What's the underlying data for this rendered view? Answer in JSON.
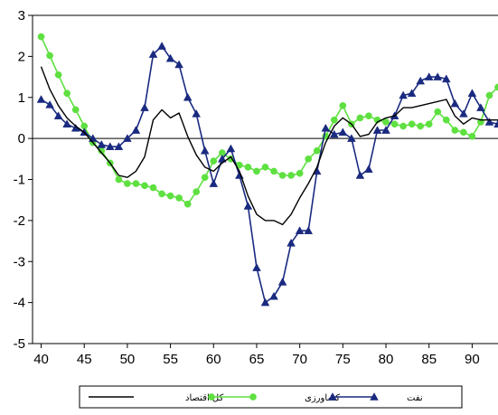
{
  "chart_data": {
    "type": "line",
    "xlabel": "",
    "ylabel": "",
    "xlim": [
      39,
      93
    ],
    "ylim": [
      -5,
      3
    ],
    "x_ticks": [
      40,
      45,
      50,
      55,
      60,
      65,
      70,
      75,
      80,
      85,
      90
    ],
    "y_ticks": [
      3,
      2,
      1,
      0,
      -1,
      -2,
      -3,
      -4,
      -5
    ],
    "zero_line": true,
    "grid": false,
    "legend_position": "bottom",
    "series": [
      {
        "name": "کل اقتصاد",
        "color": "#000000",
        "marker": "none",
        "x": [
          40,
          41,
          42,
          43,
          44,
          45,
          46,
          47,
          48,
          49,
          50,
          51,
          52,
          53,
          54,
          55,
          56,
          57,
          58,
          59,
          60,
          61,
          62,
          63,
          64,
          65,
          66,
          67,
          68,
          69,
          70,
          71,
          72,
          73,
          74,
          75,
          76,
          77,
          78,
          79,
          80,
          81,
          82,
          83,
          84,
          85,
          86,
          87,
          88,
          89,
          90,
          91,
          92,
          93
        ],
        "values": [
          1.75,
          1.2,
          0.8,
          0.5,
          0.3,
          0.15,
          -0.1,
          -0.35,
          -0.6,
          -0.9,
          -0.95,
          -0.8,
          -0.45,
          0.45,
          0.7,
          0.5,
          0.62,
          0.05,
          -0.4,
          -0.7,
          -0.8,
          -0.6,
          -0.45,
          -0.8,
          -1.4,
          -1.85,
          -2.0,
          -2.0,
          -2.1,
          -1.85,
          -1.45,
          -1.1,
          -0.7,
          -0.1,
          0.3,
          0.5,
          0.35,
          0.05,
          0.1,
          0.4,
          0.5,
          0.55,
          0.75,
          0.75,
          0.8,
          0.85,
          0.9,
          0.95,
          0.55,
          0.35,
          0.5,
          0.45,
          0.45,
          0.45
        ]
      },
      {
        "name": "کشاورزی",
        "color": "#5ee040",
        "marker": "circle",
        "x": [
          40,
          41,
          42,
          43,
          44,
          45,
          46,
          47,
          48,
          49,
          50,
          51,
          52,
          53,
          54,
          55,
          56,
          57,
          58,
          59,
          60,
          61,
          62,
          63,
          64,
          65,
          66,
          67,
          68,
          69,
          70,
          71,
          72,
          73,
          74,
          75,
          76,
          77,
          78,
          79,
          80,
          81,
          82,
          83,
          84,
          85,
          86,
          87,
          88,
          89,
          90,
          91,
          92,
          93
        ],
        "values": [
          2.48,
          2.02,
          1.55,
          1.1,
          0.7,
          0.3,
          -0.1,
          -0.3,
          -0.6,
          -1.0,
          -1.1,
          -1.1,
          -1.15,
          -1.2,
          -1.35,
          -1.4,
          -1.45,
          -1.6,
          -1.3,
          -0.95,
          -0.55,
          -0.35,
          -0.5,
          -0.65,
          -0.7,
          -0.8,
          -0.7,
          -0.8,
          -0.9,
          -0.9,
          -0.85,
          -0.5,
          -0.3,
          0.05,
          0.45,
          0.8,
          0.35,
          0.5,
          0.55,
          0.45,
          0.4,
          0.35,
          0.3,
          0.35,
          0.3,
          0.35,
          0.65,
          0.45,
          0.2,
          0.15,
          0.05,
          0.4,
          1.05,
          1.25
        ]
      },
      {
        "name": "نفت",
        "color": "#1a2a80",
        "marker": "triangle",
        "x": [
          40,
          41,
          42,
          43,
          44,
          45,
          46,
          47,
          48,
          49,
          50,
          51,
          52,
          53,
          54,
          55,
          56,
          57,
          58,
          59,
          60,
          61,
          62,
          63,
          64,
          65,
          66,
          67,
          68,
          69,
          70,
          71,
          72,
          73,
          74,
          75,
          76,
          77,
          78,
          79,
          80,
          81,
          82,
          83,
          84,
          85,
          86,
          87,
          88,
          89,
          90,
          91,
          92,
          93
        ],
        "values": [
          0.95,
          0.82,
          0.55,
          0.35,
          0.25,
          0.15,
          0.0,
          -0.15,
          -0.2,
          -0.2,
          0.0,
          0.2,
          0.75,
          2.05,
          2.25,
          1.95,
          1.8,
          1.0,
          0.6,
          -0.3,
          -1.1,
          -0.5,
          -0.25,
          -0.9,
          -1.65,
          -3.15,
          -4.0,
          -3.85,
          -3.5,
          -2.55,
          -2.25,
          -2.25,
          -0.8,
          0.25,
          0.1,
          0.15,
          0.0,
          -0.9,
          -0.75,
          0.2,
          0.2,
          0.55,
          1.05,
          1.1,
          1.4,
          1.5,
          1.5,
          1.45,
          0.85,
          0.6,
          1.1,
          0.75,
          0.4,
          0.35
        ]
      }
    ]
  }
}
